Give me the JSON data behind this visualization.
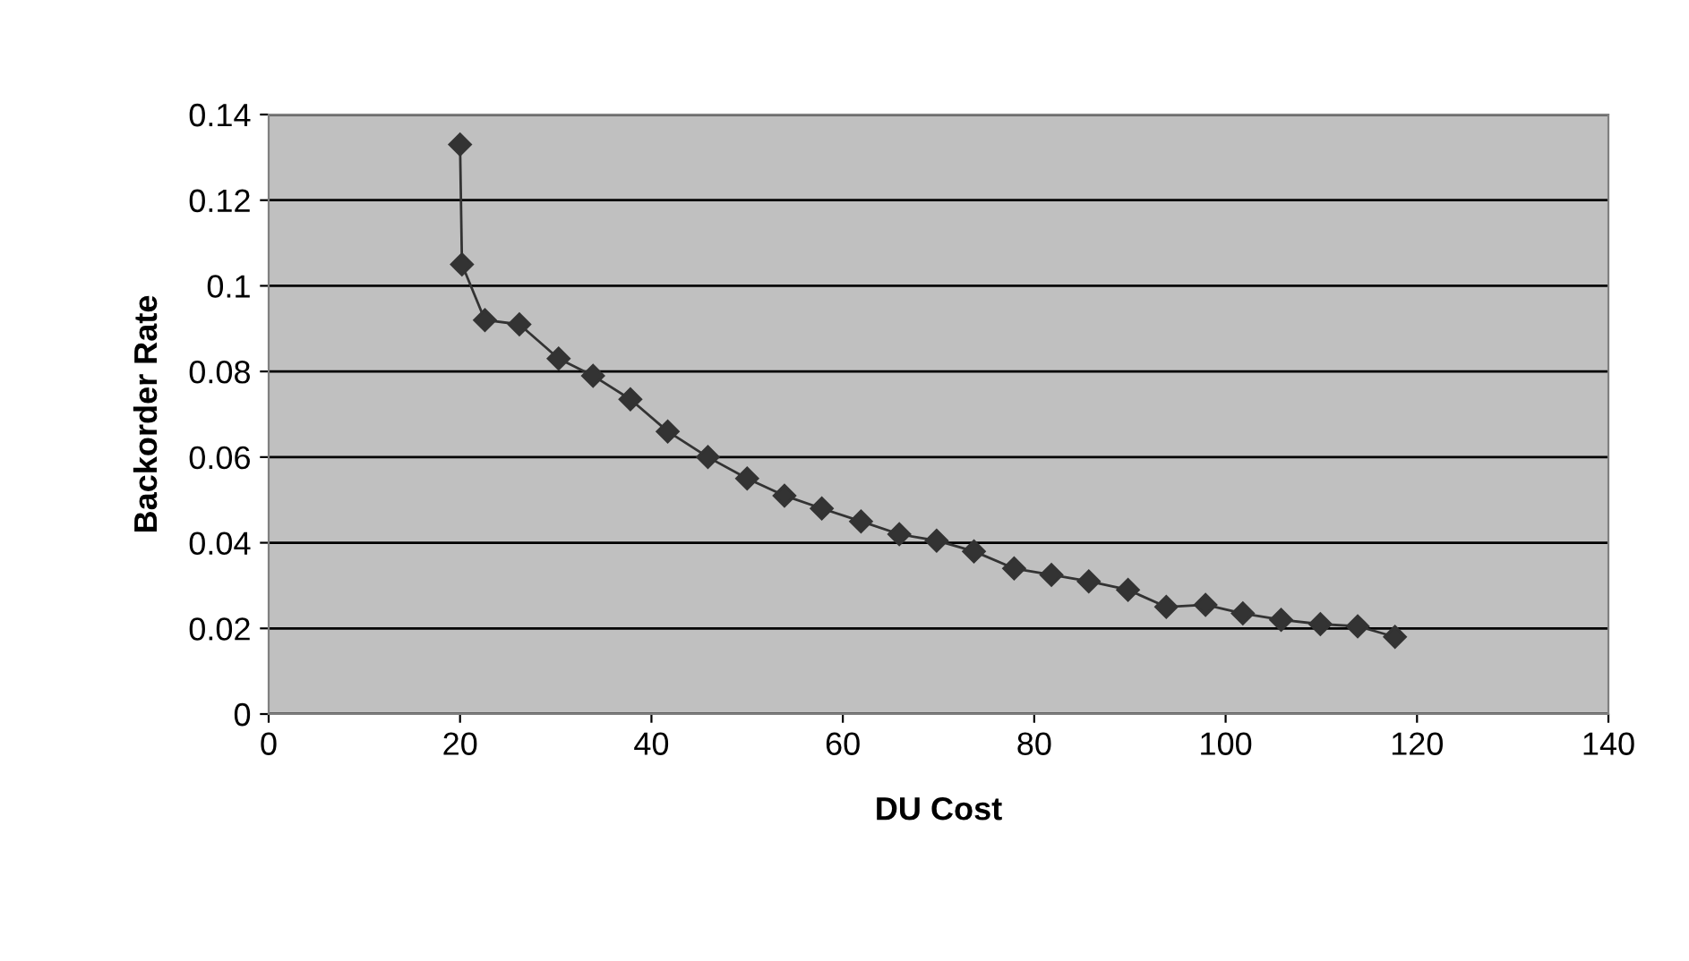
{
  "chart_data": {
    "type": "line",
    "xlabel": "DU Cost",
    "ylabel": "Backorder Rate",
    "xlim": [
      0,
      140
    ],
    "xticks": [
      0,
      20,
      40,
      60,
      80,
      100,
      120,
      140
    ],
    "ylim": [
      0,
      0.14
    ],
    "yticks": [
      0,
      0.02,
      0.04,
      0.06,
      0.08,
      0.1,
      0.12,
      0.14
    ],
    "grid": "y",
    "marker": "diamond",
    "line_style": "solid",
    "series": [
      {
        "color": "#333333",
        "x": [
          20.0,
          20.2,
          22.6,
          26.2,
          30.3,
          33.9,
          37.8,
          41.7,
          45.9,
          50.0,
          53.9,
          57.8,
          61.9,
          65.9,
          69.8,
          73.7,
          77.9,
          81.8,
          85.7,
          89.8,
          93.8,
          97.9,
          101.8,
          105.8,
          109.9,
          113.8,
          117.7
        ],
        "values": [
          0.133,
          0.105,
          0.092,
          0.091,
          0.083,
          0.079,
          0.0735,
          0.066,
          0.06,
          0.055,
          0.051,
          0.048,
          0.045,
          0.042,
          0.0405,
          0.038,
          0.034,
          0.0325,
          0.031,
          0.029,
          0.025,
          0.0255,
          0.0235,
          0.022,
          0.021,
          0.0205,
          0.018
        ]
      }
    ]
  }
}
